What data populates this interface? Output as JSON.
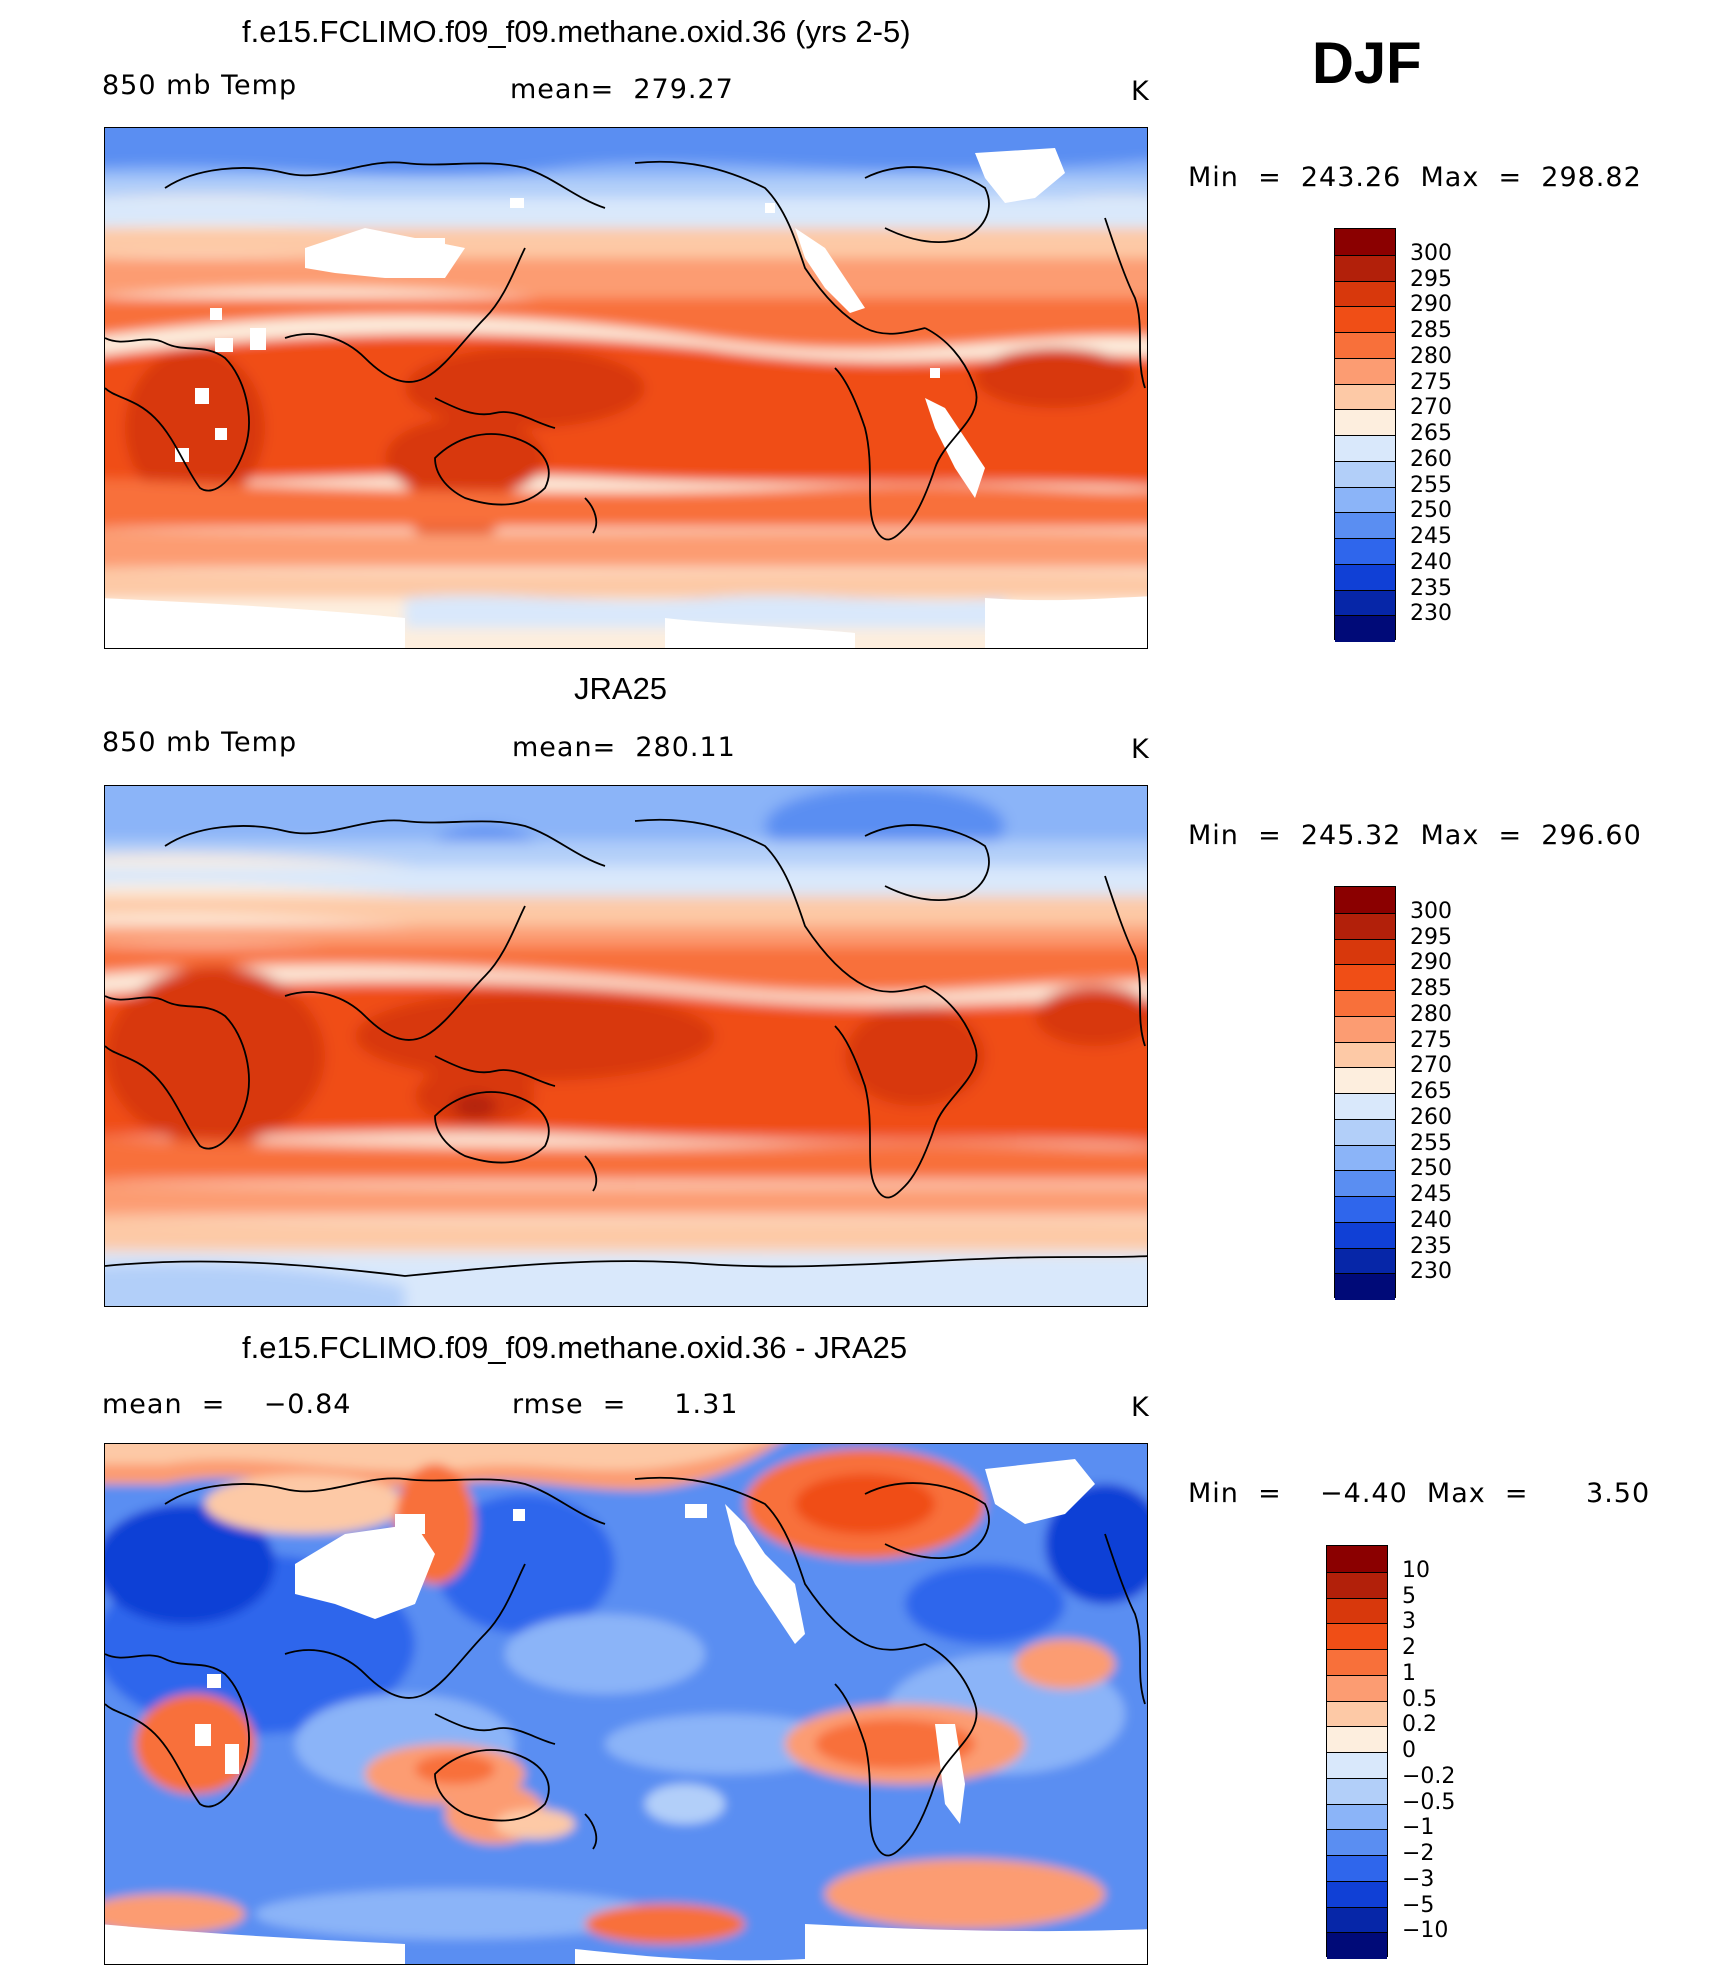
{
  "season": "DJF",
  "panels": [
    {
      "title": "f.e15.FCLIMO.f09_f09.methane.oxid.36 (yrs 2-5)",
      "left_label": "850 mb Temp",
      "center_label": "mean=  279.27",
      "units": "K",
      "minmax": "Min  =  243.26  Max  =  298.82",
      "colorbar": "abs"
    },
    {
      "title": "JRA25",
      "left_label": "850 mb Temp",
      "center_label": "mean=  280.11",
      "units": "K",
      "minmax": "Min  =  245.32  Max  =  296.60",
      "colorbar": "abs"
    },
    {
      "title": "f.e15.FCLIMO.f09_f09.methane.oxid.36 - JRA25",
      "left_label": "mean  =    −0.84",
      "center_label": "rmse  =     1.31",
      "units": "K",
      "minmax": "Min  =    −4.40  Max  =      3.50",
      "colorbar": "diff"
    }
  ],
  "colorbars": {
    "abs": {
      "labels": [
        "300",
        "295",
        "290",
        "285",
        "280",
        "275",
        "270",
        "265",
        "260",
        "255",
        "250",
        "245",
        "240",
        "235",
        "230"
      ],
      "colors": [
        "#8b0000",
        "#b2200a",
        "#d8380c",
        "#f04e16",
        "#f8703a",
        "#fc9c72",
        "#fdc9a6",
        "#fdeede",
        "#d9e8fb",
        "#b2cff9",
        "#8bb4f8",
        "#5a8ef2",
        "#2f66ec",
        "#1040d6",
        "#0626a8",
        "#000a78"
      ]
    },
    "diff": {
      "labels": [
        "10",
        "5",
        "3",
        "2",
        "1",
        "0.5",
        "0.2",
        "0",
        "−0.2",
        "−0.5",
        "−1",
        "−2",
        "−3",
        "−5",
        "−10"
      ],
      "colors": [
        "#8b0000",
        "#b2200a",
        "#d8380c",
        "#f04e16",
        "#f8703a",
        "#fc9c72",
        "#fdc9a6",
        "#fdeede",
        "#d9e8fb",
        "#b2cff9",
        "#8bb4f8",
        "#5a8ef2",
        "#2f66ec",
        "#1040d6",
        "#0626a8",
        "#000a78"
      ]
    }
  }
}
